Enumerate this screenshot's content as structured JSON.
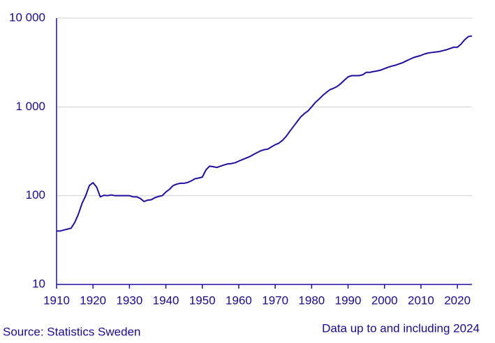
{
  "chart_data": {
    "type": "line",
    "x": [
      1910,
      1911,
      1912,
      1913,
      1914,
      1915,
      1916,
      1917,
      1918,
      1919,
      1920,
      1921,
      1922,
      1923,
      1924,
      1925,
      1926,
      1927,
      1928,
      1929,
      1930,
      1931,
      1932,
      1933,
      1934,
      1935,
      1936,
      1937,
      1938,
      1939,
      1940,
      1941,
      1942,
      1943,
      1944,
      1945,
      1946,
      1947,
      1948,
      1949,
      1950,
      1951,
      1952,
      1953,
      1954,
      1955,
      1956,
      1957,
      1958,
      1959,
      1960,
      1961,
      1962,
      1963,
      1964,
      1965,
      1966,
      1967,
      1968,
      1969,
      1970,
      1971,
      1972,
      1973,
      1974,
      1975,
      1976,
      1977,
      1978,
      1979,
      1980,
      1981,
      1982,
      1983,
      1984,
      1985,
      1986,
      1987,
      1988,
      1989,
      1990,
      1991,
      1992,
      1993,
      1994,
      1995,
      1996,
      1997,
      1998,
      1999,
      2000,
      2001,
      2002,
      2003,
      2004,
      2005,
      2006,
      2007,
      2008,
      2009,
      2010,
      2011,
      2012,
      2013,
      2014,
      2015,
      2016,
      2017,
      2018,
      2019,
      2020,
      2021,
      2022,
      2023,
      2024
    ],
    "values": [
      40,
      40,
      41,
      42,
      43,
      50,
      62,
      82,
      100,
      130,
      140,
      125,
      97,
      101,
      100,
      102,
      100,
      100,
      100,
      100,
      100,
      97,
      97,
      93,
      86,
      89,
      90,
      95,
      98,
      100,
      110,
      118,
      130,
      135,
      138,
      138,
      141,
      147,
      155,
      158,
      162,
      195,
      215,
      212,
      208,
      215,
      222,
      228,
      230,
      235,
      245,
      255,
      265,
      275,
      290,
      305,
      320,
      330,
      335,
      355,
      375,
      390,
      420,
      465,
      530,
      600,
      680,
      770,
      840,
      900,
      1000,
      1120,
      1220,
      1340,
      1450,
      1560,
      1620,
      1700,
      1830,
      2000,
      2180,
      2250,
      2250,
      2250,
      2300,
      2450,
      2450,
      2500,
      2540,
      2600,
      2700,
      2800,
      2880,
      2950,
      3050,
      3150,
      3300,
      3450,
      3600,
      3700,
      3800,
      3950,
      4050,
      4100,
      4150,
      4200,
      4300,
      4400,
      4550,
      4700,
      4700,
      5100,
      5700,
      6200,
      6300
    ],
    "color": "#1f0f9e",
    "xlim": [
      1910,
      2024
    ],
    "xticks": [
      1910,
      1920,
      1930,
      1940,
      1950,
      1960,
      1970,
      1980,
      1990,
      2000,
      2010,
      2020
    ],
    "ylim": [
      10,
      10000
    ],
    "yticks": [
      10,
      100,
      {
        "value": 1000,
        "label": "1 000"
      },
      {
        "value": 10000,
        "label": "10 000"
      }
    ],
    "log_scale": true,
    "grid": true,
    "source": "Source: Statistics Sweden",
    "note": "Data up to and including 2024"
  }
}
